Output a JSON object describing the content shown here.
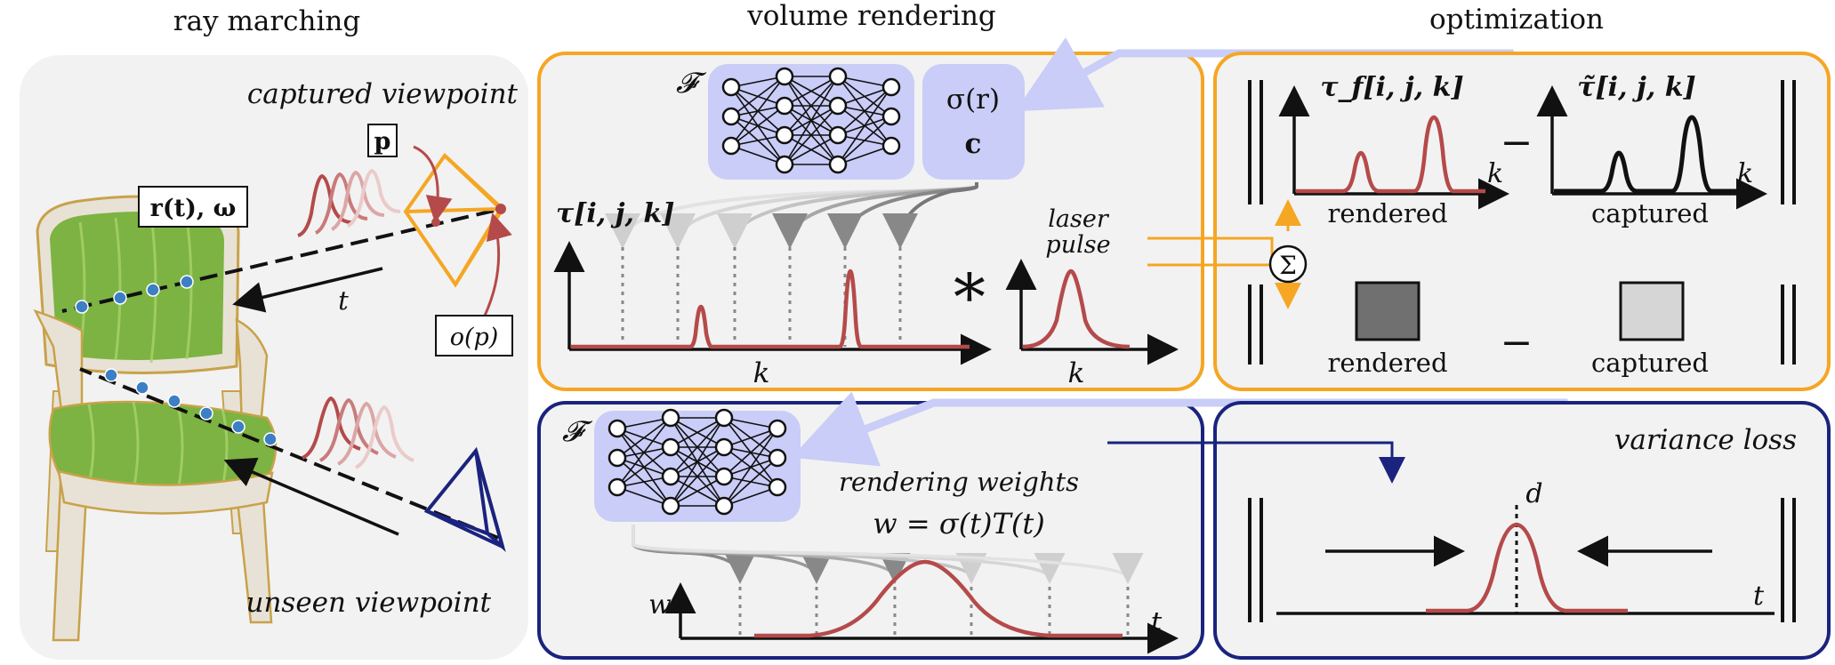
{
  "headers": {
    "left": "ray marching",
    "middle": "volume rendering",
    "right": "optimization"
  },
  "ray_marching": {
    "captured_viewpoint": "captured viewpoint",
    "unseen_viewpoint": "unseen viewpoint",
    "p_label": "p",
    "r_omega_label": "r(t), ω",
    "t_label": "t",
    "o_p_label": "o(p)",
    "chair_colors": {
      "fabric": "#7cb342",
      "frame": "#e8e2d6",
      "gold": "#c8a24a"
    }
  },
  "volume_rendering": {
    "F_label": "𝓕",
    "sigma_label": "σ(r)",
    "c_label": "c",
    "tau_label": "τ[i, j, k]",
    "k_axis": "k",
    "convolution": "∗",
    "laser_pulse_line1": "laser",
    "laser_pulse_line2": "pulse",
    "pulse_k_axis": "k"
  },
  "optimization": {
    "tau_f_label": "τ_f[i, j, k]",
    "tau_captured_label": "τ̃[i, j, k]",
    "k_axis": "k",
    "rendered": "rendered",
    "captured": "captured",
    "minus": "−",
    "sum_symbol": "Σ",
    "rendered_swatch": "#707070",
    "captured_swatch": "#d6d6d6"
  },
  "rendering_weights": {
    "F_label": "𝓕",
    "title": "rendering weights",
    "formula": "w = σ(t)T(t)",
    "w_axis": "w",
    "t_axis": "t"
  },
  "variance_loss": {
    "title": "variance loss",
    "d_label": "d",
    "t_axis": "t"
  },
  "colors": {
    "orange": "#f5a623",
    "navy": "#1a237e",
    "lavender": "#c9cdf7",
    "red_curve": "#b54a4a",
    "blue_dot": "#3c7fc4"
  }
}
